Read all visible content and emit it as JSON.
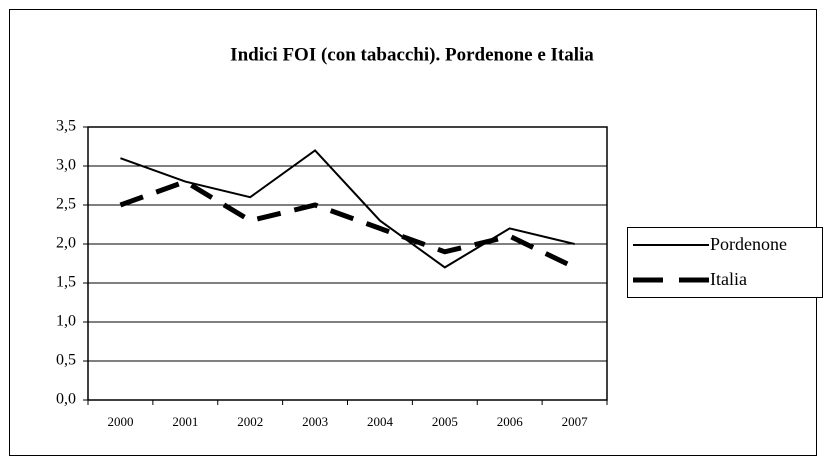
{
  "chart_data": {
    "type": "line",
    "title": "Indici FOI (con tabacchi). Pordenone e Italia",
    "categories": [
      "2000",
      "2001",
      "2002",
      "2003",
      "2004",
      "2005",
      "2006",
      "2007"
    ],
    "series": [
      {
        "name": "Pordenone",
        "color": "#000000",
        "values": [
          3.1,
          2.8,
          2.6,
          3.2,
          2.3,
          1.7,
          2.2,
          2.0
        ]
      },
      {
        "name": "Italia",
        "color": "#000000",
        "values": [
          2.5,
          2.8,
          2.3,
          2.5,
          2.2,
          1.9,
          2.1,
          1.7
        ]
      }
    ],
    "ylim": [
      0,
      3.5
    ],
    "yticks": [
      {
        "value": 0,
        "label": "0,0"
      },
      {
        "value": 0.5,
        "label": "0,5"
      },
      {
        "value": 1,
        "label": "1,0"
      },
      {
        "value": 1.5,
        "label": "1,5"
      },
      {
        "value": 2,
        "label": "2,0"
      },
      {
        "value": 2.5,
        "label": "2,5"
      },
      {
        "value": 3,
        "label": "3,0"
      },
      {
        "value": 3.5,
        "label": "3,5"
      }
    ],
    "grid": true,
    "legend": "right"
  }
}
